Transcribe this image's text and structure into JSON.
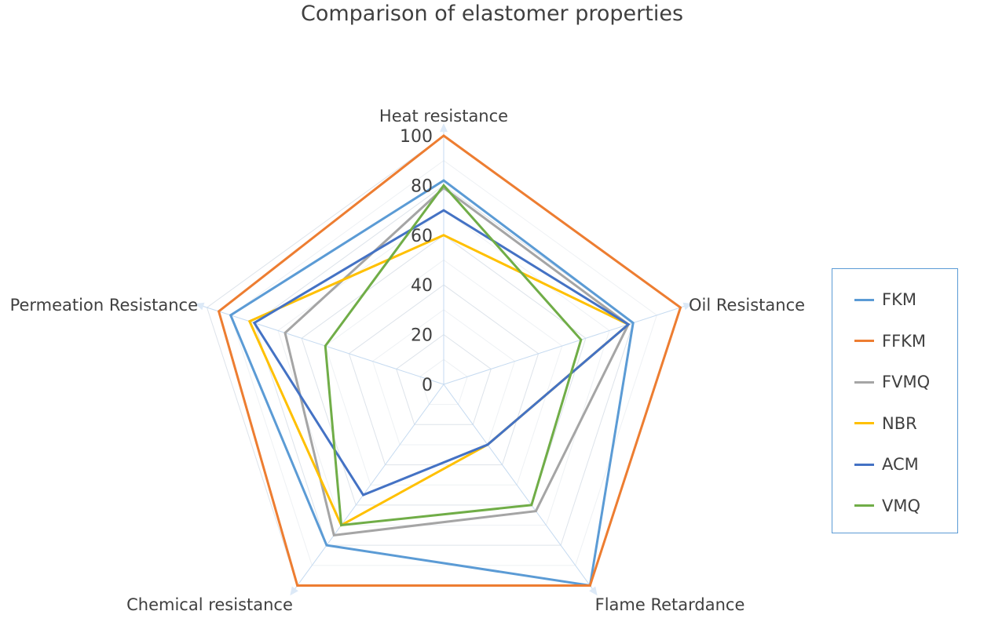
{
  "chart_data": {
    "type": "radar",
    "title": "Comparison of elastomer properties",
    "axes": [
      "Heat resistance",
      "Oil Resistance",
      "Flame Retardance",
      "Chemical resistance",
      "Permeation Resistance"
    ],
    "radial_ticks": [
      "0",
      "20",
      "40",
      "60",
      "80",
      "100"
    ],
    "rlim": [
      0,
      100
    ],
    "grid": true,
    "legend_position": "right",
    "series": [
      {
        "name": "FKM",
        "color": "#5b9bd5",
        "values": [
          82,
          80,
          100,
          80,
          90
        ]
      },
      {
        "name": "FFKM",
        "color": "#ed7d31",
        "values": [
          100,
          100,
          100,
          100,
          95
        ]
      },
      {
        "name": "FVMQ",
        "color": "#a5a5a5",
        "values": [
          79,
          78,
          63,
          75,
          67
        ]
      },
      {
        "name": "NBR",
        "color": "#ffc000",
        "values": [
          60,
          78,
          30,
          70,
          82
        ]
      },
      {
        "name": "ACM",
        "color": "#4472c4",
        "values": [
          70,
          78,
          30,
          55,
          80
        ]
      },
      {
        "name": "VMQ",
        "color": "#70ad47",
        "values": [
          80,
          58,
          60,
          70,
          50
        ]
      }
    ]
  }
}
